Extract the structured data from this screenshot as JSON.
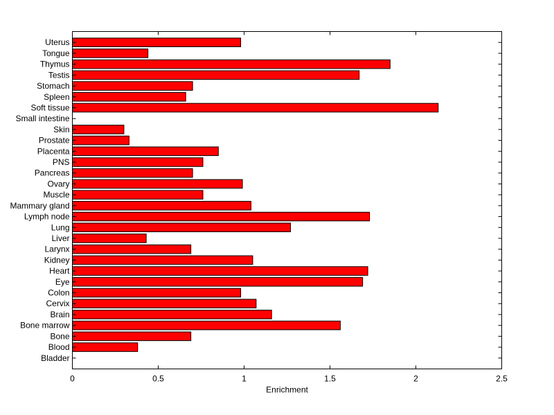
{
  "chart_data": {
    "type": "bar",
    "orientation": "horizontal",
    "xlabel": "Enrichment",
    "ylabel": "",
    "title": "",
    "xlim": [
      0,
      2.5
    ],
    "xticks": [
      0,
      0.5,
      1,
      1.5,
      2,
      2.5
    ],
    "xtick_labels": [
      "0",
      "0.5",
      "1",
      "1.5",
      "2",
      "2.5"
    ],
    "bar_color": "#ff0000",
    "edge_color": "#000000",
    "grid": false,
    "categories": [
      "Bladder",
      "Blood",
      "Bone",
      "Bone marrow",
      "Brain",
      "Cervix",
      "Colon",
      "Eye",
      "Heart",
      "Kidney",
      "Larynx",
      "Liver",
      "Lung",
      "Lymph node",
      "Mammary gland",
      "Muscle",
      "Ovary",
      "Pancreas",
      "PNS",
      "Placenta",
      "Prostate",
      "Skin",
      "Small intestine",
      "Soft tissue",
      "Spleen",
      "Stomach",
      "Testis",
      "Thymus",
      "Tongue",
      "Uterus"
    ],
    "values": [
      0,
      0.38,
      0.69,
      1.56,
      1.16,
      1.07,
      0.98,
      1.69,
      1.72,
      1.05,
      0.69,
      0.43,
      1.27,
      1.73,
      1.04,
      0.76,
      0.99,
      0.7,
      0.76,
      0.85,
      0.33,
      0.3,
      0,
      2.13,
      0.66,
      0.7,
      1.67,
      1.85,
      0.44,
      0.98
    ]
  }
}
